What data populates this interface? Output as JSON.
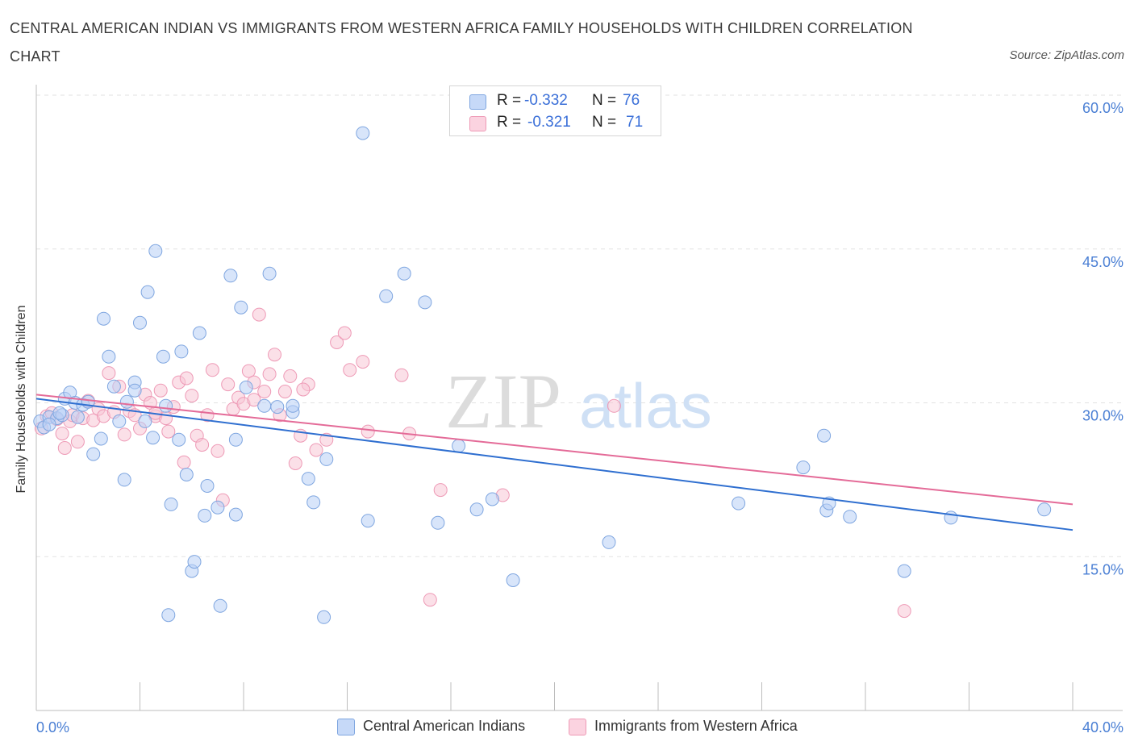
{
  "title": "CENTRAL AMERICAN INDIAN VS IMMIGRANTS FROM WESTERN AFRICA FAMILY HOUSEHOLDS WITH CHILDREN CORRELATION CHART",
  "source": "Source: ZipAtlas.com",
  "watermark": {
    "zip": "ZIP",
    "atlas": "atlas"
  },
  "legend": {
    "r_label": "R =",
    "n_label": "N =",
    "blue": {
      "r": "-0.332",
      "n": "76"
    },
    "pink": {
      "r": "-0.321",
      "n": "71"
    }
  },
  "colors": {
    "blue_fill": "#b8d0f5",
    "blue_stroke": "#7fa6e0",
    "blue_line": "#2f6fd0",
    "pink_fill": "#f8c6d6",
    "pink_stroke": "#ee9ab6",
    "pink_line": "#e46b98",
    "tick_label": "#4a7fd4",
    "grid": "#e2e2e2"
  },
  "chart_data": {
    "type": "scatter",
    "title": "CENTRAL AMERICAN INDIAN VS IMMIGRANTS FROM WESTERN AFRICA FAMILY HOUSEHOLDS WITH CHILDREN CORRELATION CHART",
    "xlabel": "",
    "ylabel": "Family Households with Children",
    "xlim": [
      0,
      40
    ],
    "ylim": [
      0,
      60
    ],
    "x_tick_labels": [
      "0.0%",
      "40.0%"
    ],
    "y_tick_labels": [
      "15.0%",
      "30.0%",
      "45.0%",
      "60.0%"
    ],
    "y_ticks": [
      15,
      30,
      45,
      60
    ],
    "grid": true,
    "legend_position": "top-center",
    "series": [
      {
        "name": "Central American Indians",
        "color": "#b8d0f5",
        "trend": {
          "x0": 0,
          "y0": 30.4,
          "x1": 40,
          "y1": 17.6
        },
        "points": [
          [
            0.15,
            28.2
          ],
          [
            0.3,
            27.6
          ],
          [
            0.5,
            28.6
          ],
          [
            0.8,
            28.5
          ],
          [
            1.0,
            28.8
          ],
          [
            1.1,
            30.4
          ],
          [
            1.3,
            31.0
          ],
          [
            1.5,
            30.0
          ],
          [
            1.6,
            28.6
          ],
          [
            1.8,
            29.8
          ],
          [
            2.0,
            30.1
          ],
          [
            2.2,
            25.0
          ],
          [
            2.5,
            26.5
          ],
          [
            2.6,
            38.2
          ],
          [
            2.8,
            34.5
          ],
          [
            3.0,
            31.6
          ],
          [
            3.2,
            28.2
          ],
          [
            3.4,
            22.5
          ],
          [
            3.5,
            30.1
          ],
          [
            3.8,
            32.0
          ],
          [
            3.8,
            31.2
          ],
          [
            4.0,
            37.8
          ],
          [
            4.2,
            28.2
          ],
          [
            4.3,
            40.8
          ],
          [
            4.5,
            26.6
          ],
          [
            4.6,
            44.8
          ],
          [
            4.9,
            34.5
          ],
          [
            5.0,
            29.7
          ],
          [
            5.1,
            9.3
          ],
          [
            5.2,
            20.1
          ],
          [
            5.5,
            26.4
          ],
          [
            5.6,
            35.0
          ],
          [
            5.8,
            23.0
          ],
          [
            6.0,
            13.6
          ],
          [
            6.1,
            14.5
          ],
          [
            6.3,
            36.8
          ],
          [
            6.5,
            19.0
          ],
          [
            6.6,
            21.9
          ],
          [
            7.0,
            19.8
          ],
          [
            7.1,
            10.2
          ],
          [
            7.5,
            42.4
          ],
          [
            7.7,
            19.1
          ],
          [
            7.7,
            26.4
          ],
          [
            7.9,
            39.3
          ],
          [
            8.1,
            31.5
          ],
          [
            8.8,
            29.7
          ],
          [
            9.0,
            42.6
          ],
          [
            9.3,
            29.6
          ],
          [
            9.9,
            29.1
          ],
          [
            9.9,
            29.7
          ],
          [
            10.5,
            22.6
          ],
          [
            10.7,
            20.3
          ],
          [
            11.1,
            9.1
          ],
          [
            11.2,
            24.5
          ],
          [
            12.8,
            18.5
          ],
          [
            13.5,
            40.4
          ],
          [
            14.2,
            42.6
          ],
          [
            15.0,
            39.8
          ],
          [
            15.5,
            18.3
          ],
          [
            16.3,
            25.8
          ],
          [
            17.0,
            19.6
          ],
          [
            17.6,
            20.6
          ],
          [
            18.4,
            12.7
          ],
          [
            22.1,
            16.4
          ],
          [
            27.1,
            20.2
          ],
          [
            29.6,
            23.7
          ],
          [
            30.4,
            26.8
          ],
          [
            30.5,
            19.5
          ],
          [
            30.6,
            20.2
          ],
          [
            31.4,
            18.9
          ],
          [
            35.3,
            18.8
          ],
          [
            33.5,
            13.6
          ],
          [
            38.9,
            19.6
          ],
          [
            12.6,
            56.3
          ],
          [
            0.5,
            27.9
          ],
          [
            0.9,
            29.0
          ]
        ]
      },
      {
        "name": "Immigrants from Western Africa",
        "color": "#f8c6d6",
        "trend": {
          "x0": 0,
          "y0": 30.8,
          "x1": 40,
          "y1": 20.1
        },
        "points": [
          [
            0.2,
            27.5
          ],
          [
            0.4,
            28.7
          ],
          [
            0.6,
            29.0
          ],
          [
            0.8,
            28.4
          ],
          [
            1.0,
            27.0
          ],
          [
            1.1,
            25.6
          ],
          [
            1.3,
            28.2
          ],
          [
            1.4,
            28.8
          ],
          [
            1.6,
            26.2
          ],
          [
            1.8,
            28.5
          ],
          [
            2.0,
            30.2
          ],
          [
            2.2,
            28.3
          ],
          [
            2.4,
            29.4
          ],
          [
            2.6,
            28.7
          ],
          [
            2.8,
            32.9
          ],
          [
            3.0,
            29.1
          ],
          [
            3.2,
            31.6
          ],
          [
            3.4,
            26.9
          ],
          [
            3.6,
            29.2
          ],
          [
            3.8,
            28.8
          ],
          [
            4.0,
            27.5
          ],
          [
            4.2,
            30.8
          ],
          [
            4.4,
            30.0
          ],
          [
            4.6,
            28.7
          ],
          [
            4.8,
            31.2
          ],
          [
            5.0,
            28.5
          ],
          [
            5.1,
            27.2
          ],
          [
            5.3,
            29.6
          ],
          [
            5.5,
            32.0
          ],
          [
            5.7,
            24.2
          ],
          [
            5.8,
            32.4
          ],
          [
            6.0,
            30.7
          ],
          [
            6.2,
            26.8
          ],
          [
            6.4,
            25.9
          ],
          [
            6.6,
            28.8
          ],
          [
            6.8,
            33.2
          ],
          [
            7.0,
            25.3
          ],
          [
            7.2,
            20.5
          ],
          [
            7.4,
            31.8
          ],
          [
            7.6,
            29.4
          ],
          [
            7.8,
            30.5
          ],
          [
            8.0,
            29.9
          ],
          [
            8.2,
            33.1
          ],
          [
            8.4,
            32.0
          ],
          [
            8.6,
            38.6
          ],
          [
            8.8,
            31.1
          ],
          [
            9.0,
            32.8
          ],
          [
            9.2,
            34.7
          ],
          [
            9.4,
            28.8
          ],
          [
            9.6,
            31.1
          ],
          [
            9.8,
            32.6
          ],
          [
            10.0,
            24.1
          ],
          [
            10.2,
            26.8
          ],
          [
            10.5,
            31.8
          ],
          [
            10.8,
            25.4
          ],
          [
            11.2,
            26.4
          ],
          [
            11.6,
            35.9
          ],
          [
            11.9,
            36.8
          ],
          [
            12.1,
            33.2
          ],
          [
            12.6,
            34.0
          ],
          [
            12.8,
            27.2
          ],
          [
            14.1,
            32.7
          ],
          [
            14.4,
            27.0
          ],
          [
            15.2,
            10.8
          ],
          [
            15.6,
            21.5
          ],
          [
            18.0,
            21.0
          ],
          [
            22.3,
            29.7
          ],
          [
            33.5,
            9.7
          ],
          [
            8.4,
            30.3
          ],
          [
            10.3,
            31.3
          ],
          [
            4.6,
            29.0
          ]
        ]
      }
    ]
  },
  "bottom_legend": {
    "blue_label": "Central American Indians",
    "pink_label": "Immigrants from Western Africa"
  }
}
